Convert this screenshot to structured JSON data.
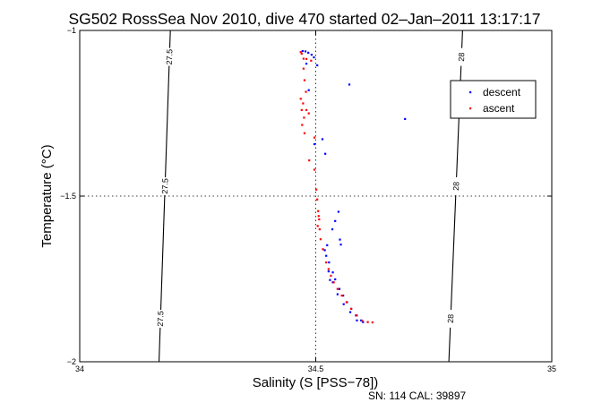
{
  "chart_data": {
    "type": "scatter",
    "title": "SG502 RossSea Nov 2010, dive 470 started 02–Jan–2011 13:17:17",
    "xlabel": "Salinity (S [PSS−78])",
    "ylabel": "Temperature (°C)",
    "footnote": "SN: 114  CAL: 39897",
    "xlim": [
      34,
      35
    ],
    "ylim": [
      -2,
      -1
    ],
    "xticks": [
      34,
      34.5,
      35
    ],
    "xtick_labels": [
      "34",
      "34.5",
      "35"
    ],
    "yticks": [
      -2,
      -1.5,
      -1
    ],
    "ytick_labels": [
      "−2",
      "−1.5",
      "−1"
    ],
    "grid": "dotted lines at x=34.5 and y=-1.5",
    "legend_position": "top-right",
    "density_contours": [
      {
        "label": "27.5",
        "points": [
          [
            34.192,
            -1.0
          ],
          [
            34.168,
            -2.0
          ]
        ]
      },
      {
        "label": "28",
        "points": [
          [
            34.811,
            -1.0
          ],
          [
            34.782,
            -2.0
          ]
        ]
      }
    ],
    "series": [
      {
        "name": "descent",
        "color": "#0000ff",
        "points": [
          [
            34.472,
            -1.062
          ],
          [
            34.478,
            -1.063
          ],
          [
            34.484,
            -1.067
          ],
          [
            34.491,
            -1.073
          ],
          [
            34.496,
            -1.081
          ],
          [
            34.503,
            -1.105
          ],
          [
            34.571,
            -1.163
          ],
          [
            34.689,
            -1.267
          ],
          [
            34.514,
            -1.328
          ],
          [
            34.52,
            -1.372
          ],
          [
            34.497,
            -1.343
          ],
          [
            34.548,
            -1.547
          ],
          [
            34.541,
            -1.575
          ],
          [
            34.535,
            -1.6
          ],
          [
            34.524,
            -1.648
          ],
          [
            34.519,
            -1.663
          ],
          [
            34.522,
            -1.68
          ],
          [
            34.528,
            -1.7
          ],
          [
            34.536,
            -1.73
          ],
          [
            34.541,
            -1.751
          ],
          [
            34.55,
            -1.78
          ],
          [
            34.558,
            -1.8
          ],
          [
            34.566,
            -1.82
          ],
          [
            34.575,
            -1.84
          ],
          [
            34.585,
            -1.86
          ],
          [
            34.596,
            -1.875
          ],
          [
            34.551,
            -1.631
          ],
          [
            34.553,
            -1.646
          ],
          [
            34.527,
            -1.727
          ],
          [
            34.53,
            -1.753
          ],
          [
            34.536,
            -1.76
          ],
          [
            34.546,
            -1.796
          ],
          [
            34.559,
            -1.826
          ],
          [
            34.573,
            -1.85
          ],
          [
            34.587,
            -1.875
          ],
          [
            34.6,
            -1.88
          ],
          [
            34.48,
            -1.1
          ],
          [
            34.485,
            -1.18
          ]
        ]
      },
      {
        "name": "ascent",
        "color": "#ff0000",
        "points": [
          [
            34.468,
            -1.065
          ],
          [
            34.47,
            -1.07
          ],
          [
            34.474,
            -1.085
          ],
          [
            34.48,
            -1.086
          ],
          [
            34.49,
            -1.091
          ],
          [
            34.474,
            -1.115
          ],
          [
            34.476,
            -1.15
          ],
          [
            34.479,
            -1.185
          ],
          [
            34.468,
            -1.206
          ],
          [
            34.473,
            -1.22
          ],
          [
            34.47,
            -1.24
          ],
          [
            34.48,
            -1.24
          ],
          [
            34.485,
            -1.25
          ],
          [
            34.475,
            -1.263
          ],
          [
            34.471,
            -1.285
          ],
          [
            34.476,
            -1.31
          ],
          [
            34.497,
            -1.323
          ],
          [
            34.486,
            -1.392
          ],
          [
            34.497,
            -1.42
          ],
          [
            34.501,
            -1.48
          ],
          [
            34.503,
            -1.51
          ],
          [
            34.505,
            -1.545
          ],
          [
            34.507,
            -1.57
          ],
          [
            34.508,
            -1.6
          ],
          [
            34.51,
            -1.63
          ],
          [
            34.515,
            -1.66
          ],
          [
            34.522,
            -1.7
          ],
          [
            34.527,
            -1.72
          ],
          [
            34.532,
            -1.74
          ],
          [
            34.538,
            -1.76
          ],
          [
            34.546,
            -1.78
          ],
          [
            34.555,
            -1.8
          ],
          [
            34.565,
            -1.82
          ],
          [
            34.575,
            -1.84
          ],
          [
            34.587,
            -1.86
          ],
          [
            34.598,
            -1.876
          ],
          [
            34.61,
            -1.88
          ],
          [
            34.62,
            -1.881
          ],
          [
            34.506,
            -1.56
          ],
          [
            34.504,
            -1.59
          ]
        ]
      }
    ]
  }
}
